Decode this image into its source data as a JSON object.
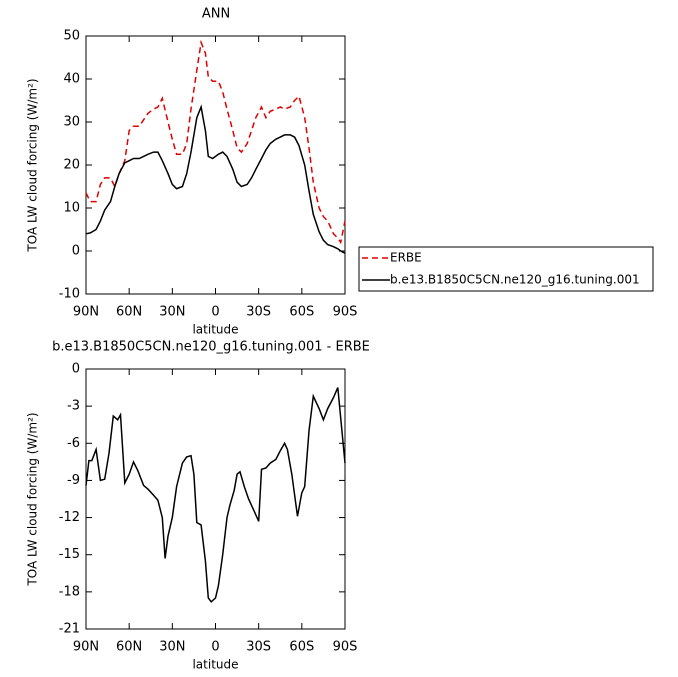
{
  "chart_data": [
    {
      "type": "line",
      "title": "ANN",
      "xlabel": "latitude",
      "ylabel": "TOA LW cloud forcing (W/m²)",
      "x": [
        90,
        87,
        83,
        80,
        77,
        73,
        70,
        67,
        63,
        60,
        57,
        53,
        50,
        47,
        43,
        40,
        37,
        33,
        30,
        27,
        23,
        20,
        17,
        13,
        10,
        7,
        5,
        2,
        -2,
        -5,
        -8,
        -12,
        -15,
        -18,
        -22,
        -25,
        -28,
        -32,
        -35,
        -38,
        -42,
        -45,
        -48,
        -52,
        -55,
        -58,
        -62,
        -65,
        -68,
        -72,
        -75,
        -78,
        -82,
        -85,
        -87,
        -90
      ],
      "series": [
        {
          "name": "ERBE",
          "color": "#e00000",
          "linestyle": "dashed",
          "values": [
            13.5,
            11.5,
            11.5,
            15.5,
            17,
            17,
            15,
            18,
            21,
            28,
            29,
            29,
            30.5,
            32,
            33,
            33.5,
            35.5,
            30,
            26,
            22.5,
            22.5,
            25,
            33,
            42,
            48.5,
            46,
            40.5,
            39.5,
            39.5,
            37,
            33,
            28,
            24,
            23,
            25,
            28,
            31,
            33.5,
            31,
            32.5,
            33,
            33.5,
            33,
            33.5,
            35,
            36,
            31,
            24,
            16,
            10,
            8,
            7,
            4,
            3,
            2,
            7
          ]
        },
        {
          "name": "b.e13.B1850C5CN.ne120_g16.tuning.001",
          "color": "#000000",
          "linestyle": "solid",
          "values": [
            4,
            4.2,
            5,
            7,
            9.5,
            11.5,
            15,
            18,
            20.5,
            21,
            21.5,
            21.5,
            22,
            22.5,
            23,
            23,
            21,
            18,
            15.5,
            14.5,
            15,
            18,
            23,
            31,
            33.5,
            28,
            22,
            21.5,
            22.5,
            23,
            22,
            19,
            16,
            15,
            15.5,
            17,
            19,
            21.5,
            23.5,
            25,
            26,
            26.5,
            27,
            27,
            26.5,
            24.5,
            20,
            14,
            8.5,
            4.5,
            2.5,
            1.5,
            1,
            0.5,
            0,
            -0.5
          ]
        }
      ],
      "xlim": [
        90,
        -90
      ],
      "xticks": [
        {
          "value": 90,
          "label": "90N"
        },
        {
          "value": 60,
          "label": "60N"
        },
        {
          "value": 30,
          "label": "30N"
        },
        0,
        {
          "value": -30,
          "label": "30S"
        },
        {
          "value": -60,
          "label": "60S"
        },
        {
          "value": -90,
          "label": "90S"
        }
      ],
      "ylim": [
        -10,
        50
      ],
      "yticks": [
        -10,
        0,
        10,
        20,
        30,
        40,
        50
      ],
      "legend": "right"
    },
    {
      "type": "line",
      "title": "b.e13.B1850C5CN.ne120_g16.tuning.001 - ERBE",
      "xlabel": "latitude",
      "ylabel": "TOA LW cloud forcing (W/m²)",
      "x": [
        90,
        88,
        86,
        83,
        80,
        77,
        74,
        71,
        68,
        66,
        63,
        60,
        57,
        54,
        50,
        47,
        43,
        40,
        37,
        35,
        33,
        30,
        27,
        23,
        20,
        17,
        15,
        13,
        10,
        7,
        5,
        3,
        0,
        -2,
        -5,
        -8,
        -10,
        -13,
        -15,
        -17,
        -20,
        -23,
        -27,
        -30,
        -32,
        -35,
        -38,
        -42,
        -45,
        -48,
        -50,
        -53,
        -57,
        -60,
        -62,
        -65,
        -68,
        -72,
        -75,
        -78,
        -82,
        -85,
        -90
      ],
      "values": [
        -9.4,
        -7.4,
        -7.4,
        -6.5,
        -9,
        -8.9,
        -6.8,
        -3.8,
        -4.1,
        -3.7,
        -9.2,
        -8.5,
        -7.5,
        -8.2,
        -9.4,
        -9.7,
        -10.2,
        -10.6,
        -12,
        -15.3,
        -13.5,
        -12,
        -9.5,
        -7.6,
        -7.1,
        -7,
        -8.5,
        -12.4,
        -12.6,
        -15.5,
        -18.5,
        -18.8,
        -18.5,
        -17.5,
        -15,
        -12,
        -11,
        -9.8,
        -8.5,
        -8.3,
        -9.5,
        -10.5,
        -11.5,
        -12.3,
        -8.1,
        -8,
        -7.6,
        -7.3,
        -6.6,
        -6,
        -6.5,
        -8.5,
        -11.9,
        -10,
        -9.5,
        -5,
        -2.2,
        -3.2,
        -4.1,
        -3.2,
        -2.3,
        -1.5,
        -7.6
      ],
      "color": "#000000",
      "xlim": [
        90,
        -90
      ],
      "xticks": [
        {
          "value": 90,
          "label": "90N"
        },
        {
          "value": 60,
          "label": "60N"
        },
        {
          "value": 30,
          "label": "30N"
        },
        0,
        {
          "value": -30,
          "label": "30S"
        },
        {
          "value": -60,
          "label": "60S"
        },
        {
          "value": -90,
          "label": "90S"
        }
      ],
      "ylim": [
        -21,
        0
      ],
      "yticks": [
        -21,
        -18,
        -15,
        -12,
        -9,
        -6,
        -3,
        0
      ]
    }
  ]
}
